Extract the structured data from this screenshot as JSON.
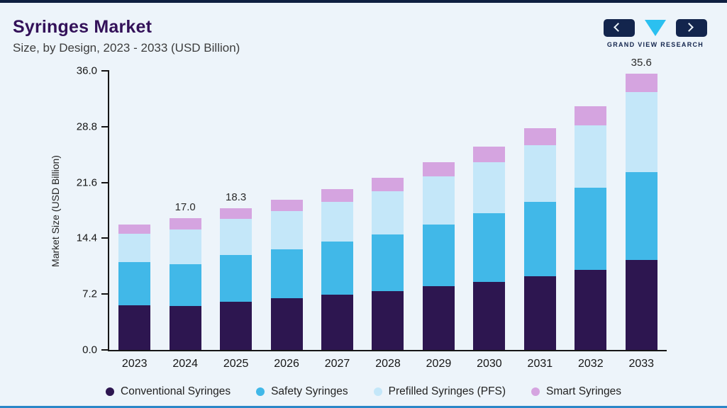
{
  "page": {
    "title": "Syringes Market",
    "subtitle": "Size, by Design, 2023 - 2033 (USD Billion)",
    "brand_name": "GRAND VIEW RESEARCH",
    "accent_colors": {
      "top_bar": "#0e1f40",
      "bottom_bar": "#2b87c8",
      "background": "#edf4fa",
      "title": "#331159"
    }
  },
  "chart_data": {
    "type": "bar",
    "stacked": true,
    "title": "Syringes Market Size, by Design, 2023 - 2033 (USD Billion)",
    "xlabel": "",
    "ylabel": "Market Size (USD Billion)",
    "ylim": [
      0,
      36
    ],
    "yticks": [
      "36.0",
      "28.8",
      "21.6",
      "14.4",
      "7.2",
      "0.0"
    ],
    "grid": false,
    "legend_position": "bottom",
    "categories": [
      "2023",
      "2024",
      "2025",
      "2026",
      "2027",
      "2028",
      "2029",
      "2030",
      "2031",
      "2032",
      "2033"
    ],
    "series": [
      {
        "name": "Conventional Syringes",
        "color": "#2d1650",
        "values": [
          5.8,
          5.7,
          6.2,
          6.7,
          7.1,
          7.6,
          8.2,
          8.8,
          9.5,
          10.3,
          11.6
        ]
      },
      {
        "name": "Safety Syringes",
        "color": "#41b8e8",
        "values": [
          5.5,
          5.4,
          6.0,
          6.3,
          6.9,
          7.3,
          8.0,
          8.8,
          9.6,
          10.6,
          11.3
        ]
      },
      {
        "name": "Prefilled Syringes (PFS)",
        "color": "#c4e7f9",
        "values": [
          3.7,
          4.4,
          4.7,
          4.9,
          5.1,
          5.6,
          6.2,
          6.6,
          7.3,
          8.1,
          10.4
        ]
      },
      {
        "name": "Smart Syringes",
        "color": "#d5a4e0",
        "values": [
          1.2,
          1.5,
          1.4,
          1.5,
          1.6,
          1.7,
          1.8,
          2.0,
          2.2,
          2.4,
          2.3
        ]
      }
    ],
    "totals_labeled": {
      "2024": "17.0",
      "2025": "18.3",
      "2033": "35.6"
    }
  }
}
